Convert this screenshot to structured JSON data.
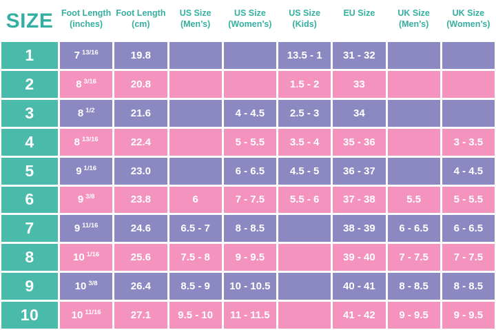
{
  "colors": {
    "teal": "#4ABAAB",
    "pink": "#F494BE",
    "purple": "#8C88C1",
    "header_text": "#35AFA1"
  },
  "chart_data": {
    "type": "table",
    "title": "SIZE",
    "columns": [
      {
        "key": "foot-length-inches",
        "field": "inches",
        "line1": "Foot Length",
        "line2": "(inches)"
      },
      {
        "key": "foot-length-cm",
        "field": "cm",
        "line1": "Foot Length",
        "line2": "(cm)"
      },
      {
        "key": "us-size-mens",
        "field": "us_mens",
        "line1": "US Size",
        "line2": "(Men’s)"
      },
      {
        "key": "us-size-womens",
        "field": "us_womens",
        "line1": "US Size",
        "line2": "(Women’s)"
      },
      {
        "key": "us-size-kids",
        "field": "us_kids",
        "line1": "US Size",
        "line2": "(Kids)"
      },
      {
        "key": "eu-size",
        "field": "eu",
        "line1": "EU Size",
        "line2": ""
      },
      {
        "key": "uk-size-mens",
        "field": "uk_mens",
        "line1": "UK Size",
        "line2": "(Men’s)"
      },
      {
        "key": "uk-size-womens",
        "field": "uk_womens",
        "line1": "UK Size",
        "line2": "(Women’s)"
      }
    ],
    "rows": [
      {
        "size": "1",
        "tone": "purple",
        "inches": "7 13/16",
        "cm": "19.8",
        "us_mens": "",
        "us_womens": "",
        "us_kids": "13.5 - 1",
        "eu": "31 - 32",
        "uk_mens": "",
        "uk_womens": ""
      },
      {
        "size": "2",
        "tone": "pink",
        "inches": "8 3/16",
        "cm": "20.8",
        "us_mens": "",
        "us_womens": "",
        "us_kids": "1.5 - 2",
        "eu": "33",
        "uk_mens": "",
        "uk_womens": ""
      },
      {
        "size": "3",
        "tone": "purple",
        "inches": "8 1/2",
        "cm": "21.6",
        "us_mens": "",
        "us_womens": "4 - 4.5",
        "us_kids": "2.5 - 3",
        "eu": "34",
        "uk_mens": "",
        "uk_womens": ""
      },
      {
        "size": "4",
        "tone": "pink",
        "inches": "8 13/16",
        "cm": "22.4",
        "us_mens": "",
        "us_womens": "5 - 5.5",
        "us_kids": "3.5 - 4",
        "eu": "35 - 36",
        "uk_mens": "",
        "uk_womens": "3 - 3.5"
      },
      {
        "size": "5",
        "tone": "purple",
        "inches": "9 1/16",
        "cm": "23.0",
        "us_mens": "",
        "us_womens": "6 - 6.5",
        "us_kids": "4.5 - 5",
        "eu": "36 - 37",
        "uk_mens": "",
        "uk_womens": "4 - 4.5"
      },
      {
        "size": "6",
        "tone": "pink",
        "inches": "9 3/8",
        "cm": "23.8",
        "us_mens": "6",
        "us_womens": "7 - 7.5",
        "us_kids": "5.5 - 6",
        "eu": "37 - 38",
        "uk_mens": "5.5",
        "uk_womens": "5 - 5.5"
      },
      {
        "size": "7",
        "tone": "purple",
        "inches": "9 11/16",
        "cm": "24.6",
        "us_mens": "6.5 - 7",
        "us_womens": "8 - 8.5",
        "us_kids": "",
        "eu": "38 - 39",
        "uk_mens": "6 - 6.5",
        "uk_womens": "6 - 6.5"
      },
      {
        "size": "8",
        "tone": "pink",
        "inches": "10 1/16",
        "cm": "25.6",
        "us_mens": "7.5 - 8",
        "us_womens": "9 - 9.5",
        "us_kids": "",
        "eu": "39 - 40",
        "uk_mens": "7 - 7.5",
        "uk_womens": "7 - 7.5"
      },
      {
        "size": "9",
        "tone": "purple",
        "inches": "10 3/8",
        "cm": "26.4",
        "us_mens": "8.5 - 9",
        "us_womens": "10 - 10.5",
        "us_kids": "",
        "eu": "40 - 41",
        "uk_mens": "8 - 8.5",
        "uk_womens": "8 - 8.5"
      },
      {
        "size": "10",
        "tone": "pink",
        "inches": "10 11/16",
        "cm": "27.1",
        "us_mens": "9.5 - 10",
        "us_womens": "11 - 11.5",
        "us_kids": "",
        "eu": "41 - 42",
        "uk_mens": "9 - 9.5",
        "uk_womens": "9 - 9.5"
      }
    ]
  }
}
